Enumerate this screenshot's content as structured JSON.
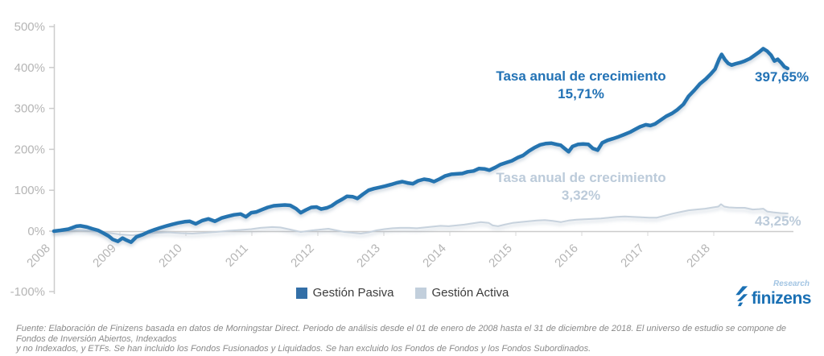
{
  "chart_data": {
    "type": "line",
    "title": "",
    "xlabel": "",
    "ylabel": "",
    "ylim": [
      -100,
      500
    ],
    "x_years": [
      2008,
      2018
    ],
    "grid": false,
    "legend_position": "bottom-center",
    "x_axis": {
      "ticks": [
        "2008",
        "2009",
        "2010",
        "2011",
        "2012",
        "2013",
        "2014",
        "2015",
        "2016",
        "2017",
        "2018"
      ]
    },
    "y_axis": {
      "ticks": [
        {
          "label": "500%",
          "value": 500
        },
        {
          "label": "400%",
          "value": 400
        },
        {
          "label": "300%",
          "value": 300
        },
        {
          "label": "200%",
          "value": 200
        },
        {
          "label": "100%",
          "value": 100
        },
        {
          "label": "0%",
          "value": 0
        },
        {
          "label": "-100%",
          "value": -100
        }
      ]
    },
    "series": [
      {
        "name": "Gestión Pasiva",
        "color": "#2574b0",
        "end_value_label": "397,65%",
        "annotation": {
          "line1": "Tasa anual de crecimiento",
          "line2": "15,71%"
        },
        "points": [
          [
            0,
            0
          ],
          [
            0.1,
            2
          ],
          [
            0.22,
            5
          ],
          [
            0.34,
            12
          ],
          [
            0.4,
            13
          ],
          [
            0.5,
            10
          ],
          [
            0.58,
            6
          ],
          [
            0.67,
            2
          ],
          [
            0.74,
            -4
          ],
          [
            0.83,
            -12
          ],
          [
            0.89,
            -20
          ],
          [
            0.97,
            -25
          ],
          [
            1.04,
            -17
          ],
          [
            1.1,
            -22
          ],
          [
            1.17,
            -27
          ],
          [
            1.25,
            -14
          ],
          [
            1.35,
            -8
          ],
          [
            1.43,
            -2
          ],
          [
            1.53,
            4
          ],
          [
            1.61,
            8
          ],
          [
            1.71,
            13
          ],
          [
            1.8,
            17
          ],
          [
            1.88,
            20
          ],
          [
            1.98,
            23
          ],
          [
            2.06,
            24
          ],
          [
            2.15,
            18
          ],
          [
            2.25,
            26
          ],
          [
            2.34,
            30
          ],
          [
            2.44,
            24
          ],
          [
            2.54,
            32
          ],
          [
            2.63,
            36
          ],
          [
            2.73,
            40
          ],
          [
            2.83,
            42
          ],
          [
            2.91,
            35
          ],
          [
            2.99,
            45
          ],
          [
            3.07,
            47
          ],
          [
            3.16,
            53
          ],
          [
            3.24,
            58
          ],
          [
            3.33,
            62
          ],
          [
            3.41,
            63
          ],
          [
            3.5,
            64
          ],
          [
            3.58,
            63
          ],
          [
            3.67,
            55
          ],
          [
            3.74,
            45
          ],
          [
            3.82,
            52
          ],
          [
            3.9,
            58
          ],
          [
            3.98,
            59
          ],
          [
            4.05,
            54
          ],
          [
            4.14,
            57
          ],
          [
            4.21,
            62
          ],
          [
            4.28,
            70
          ],
          [
            4.37,
            78
          ],
          [
            4.44,
            85
          ],
          [
            4.53,
            84
          ],
          [
            4.6,
            80
          ],
          [
            4.68,
            90
          ],
          [
            4.77,
            100
          ],
          [
            4.85,
            104
          ],
          [
            4.94,
            107
          ],
          [
            5.02,
            110
          ],
          [
            5.11,
            114
          ],
          [
            5.19,
            118
          ],
          [
            5.28,
            121
          ],
          [
            5.36,
            118
          ],
          [
            5.44,
            116
          ],
          [
            5.52,
            123
          ],
          [
            5.61,
            127
          ],
          [
            5.69,
            125
          ],
          [
            5.76,
            121
          ],
          [
            5.85,
            128
          ],
          [
            5.93,
            135
          ],
          [
            6.02,
            139
          ],
          [
            6.1,
            140
          ],
          [
            6.19,
            141
          ],
          [
            6.27,
            145
          ],
          [
            6.36,
            147
          ],
          [
            6.44,
            153
          ],
          [
            6.53,
            152
          ],
          [
            6.6,
            149
          ],
          [
            6.69,
            156
          ],
          [
            6.77,
            163
          ],
          [
            6.86,
            168
          ],
          [
            6.94,
            172
          ],
          [
            7.03,
            180
          ],
          [
            7.11,
            185
          ],
          [
            7.2,
            196
          ],
          [
            7.28,
            204
          ],
          [
            7.37,
            211
          ],
          [
            7.45,
            214
          ],
          [
            7.54,
            215
          ],
          [
            7.62,
            212
          ],
          [
            7.68,
            210
          ],
          [
            7.74,
            202
          ],
          [
            7.8,
            194
          ],
          [
            7.86,
            207
          ],
          [
            7.94,
            212
          ],
          [
            8.02,
            213
          ],
          [
            8.1,
            212
          ],
          [
            8.17,
            202
          ],
          [
            8.24,
            198
          ],
          [
            8.31,
            216
          ],
          [
            8.39,
            222
          ],
          [
            8.47,
            226
          ],
          [
            8.56,
            231
          ],
          [
            8.64,
            236
          ],
          [
            8.73,
            242
          ],
          [
            8.8,
            248
          ],
          [
            8.88,
            255
          ],
          [
            8.97,
            260
          ],
          [
            9.04,
            258
          ],
          [
            9.11,
            262
          ],
          [
            9.2,
            272
          ],
          [
            9.28,
            281
          ],
          [
            9.37,
            288
          ],
          [
            9.45,
            297
          ],
          [
            9.54,
            310
          ],
          [
            9.62,
            330
          ],
          [
            9.71,
            345
          ],
          [
            9.79,
            360
          ],
          [
            9.88,
            372
          ],
          [
            9.96,
            385
          ],
          [
            10.02,
            396
          ],
          [
            10.08,
            420
          ],
          [
            10.12,
            432
          ],
          [
            10.17,
            419
          ],
          [
            10.22,
            410
          ],
          [
            10.27,
            406
          ],
          [
            10.33,
            409
          ],
          [
            10.4,
            412
          ],
          [
            10.47,
            416
          ],
          [
            10.55,
            422
          ],
          [
            10.62,
            430
          ],
          [
            10.69,
            438
          ],
          [
            10.75,
            446
          ],
          [
            10.81,
            440
          ],
          [
            10.87,
            430
          ],
          [
            10.92,
            416
          ],
          [
            10.97,
            420
          ],
          [
            11.02,
            412
          ],
          [
            11.07,
            402
          ],
          [
            11.12,
            397.65
          ]
        ]
      },
      {
        "name": "Gestión Activa",
        "color": "#c7d2dd",
        "end_value_label": "43,25%",
        "annotation": {
          "line1": "Tasa anual de crecimiento",
          "line2": "3,32%"
        },
        "points": [
          [
            0,
            0
          ],
          [
            0.28,
            2
          ],
          [
            0.52,
            1
          ],
          [
            0.76,
            -3
          ],
          [
            1.01,
            -8
          ],
          [
            1.19,
            -10
          ],
          [
            1.37,
            -6
          ],
          [
            1.55,
            -4
          ],
          [
            1.74,
            -3
          ],
          [
            1.92,
            -5
          ],
          [
            2.1,
            -6
          ],
          [
            2.28,
            -4
          ],
          [
            2.46,
            -2
          ],
          [
            2.65,
            1
          ],
          [
            2.83,
            3
          ],
          [
            2.99,
            5
          ],
          [
            3.13,
            8
          ],
          [
            3.31,
            10
          ],
          [
            3.43,
            9
          ],
          [
            3.58,
            4
          ],
          [
            3.74,
            -2
          ],
          [
            3.92,
            2
          ],
          [
            4.04,
            4
          ],
          [
            4.16,
            6
          ],
          [
            4.28,
            2
          ],
          [
            4.4,
            -2
          ],
          [
            4.53,
            -4
          ],
          [
            4.65,
            -6
          ],
          [
            4.77,
            -3
          ],
          [
            4.89,
            2
          ],
          [
            5.01,
            5
          ],
          [
            5.13,
            7
          ],
          [
            5.25,
            8
          ],
          [
            5.38,
            8
          ],
          [
            5.5,
            7
          ],
          [
            5.62,
            9
          ],
          [
            5.74,
            11
          ],
          [
            5.86,
            13
          ],
          [
            5.98,
            12
          ],
          [
            6.1,
            14
          ],
          [
            6.22,
            16
          ],
          [
            6.35,
            19
          ],
          [
            6.47,
            22
          ],
          [
            6.59,
            20
          ],
          [
            6.65,
            14
          ],
          [
            6.73,
            12
          ],
          [
            6.83,
            16
          ],
          [
            6.95,
            20
          ],
          [
            7.07,
            22
          ],
          [
            7.19,
            24
          ],
          [
            7.32,
            26
          ],
          [
            7.44,
            27
          ],
          [
            7.56,
            25
          ],
          [
            7.68,
            22
          ],
          [
            7.8,
            26
          ],
          [
            7.92,
            28
          ],
          [
            8.04,
            29
          ],
          [
            8.17,
            30
          ],
          [
            8.29,
            31
          ],
          [
            8.41,
            33
          ],
          [
            8.53,
            35
          ],
          [
            8.65,
            36
          ],
          [
            8.77,
            35
          ],
          [
            8.9,
            34
          ],
          [
            9.02,
            33
          ],
          [
            9.14,
            33
          ],
          [
            9.26,
            38
          ],
          [
            9.38,
            43
          ],
          [
            9.5,
            47
          ],
          [
            9.62,
            51
          ],
          [
            9.74,
            53
          ],
          [
            9.87,
            55
          ],
          [
            9.99,
            58
          ],
          [
            10.07,
            60
          ],
          [
            10.11,
            66
          ],
          [
            10.16,
            60
          ],
          [
            10.23,
            58
          ],
          [
            10.35,
            57
          ],
          [
            10.47,
            57
          ],
          [
            10.59,
            53
          ],
          [
            10.69,
            54
          ],
          [
            10.75,
            55
          ],
          [
            10.81,
            48
          ],
          [
            10.9,
            46
          ],
          [
            10.96,
            45
          ],
          [
            11.02,
            44
          ],
          [
            11.12,
            43.25
          ]
        ]
      }
    ]
  },
  "legend": {
    "items": [
      {
        "label": "Gestión Pasiva",
        "color": "#336fa7"
      },
      {
        "label": "Gestión Activa",
        "color": "#c2cfdc"
      }
    ]
  },
  "logo": {
    "brand": "finizens",
    "sub": "Research",
    "brand_color": "#1a70b4",
    "sub_color": "#a3c5e3"
  },
  "footer": {
    "line1": "Fuente: Elaboración de Finizens basada en datos de Morningstar Direct. Periodo de análisis desde el 01 de enero de 2008 hasta el 31 de diciembre de 2018. El universo de estudio se compone de Fondos de Inversión Abiertos, Indexados",
    "line2": "y no Indexados, y ETFs. Se han incluido los Fondos Fusionados y Liquidados. Se han excluido los Fondos de Fondos y los Fondos Subordinados."
  }
}
